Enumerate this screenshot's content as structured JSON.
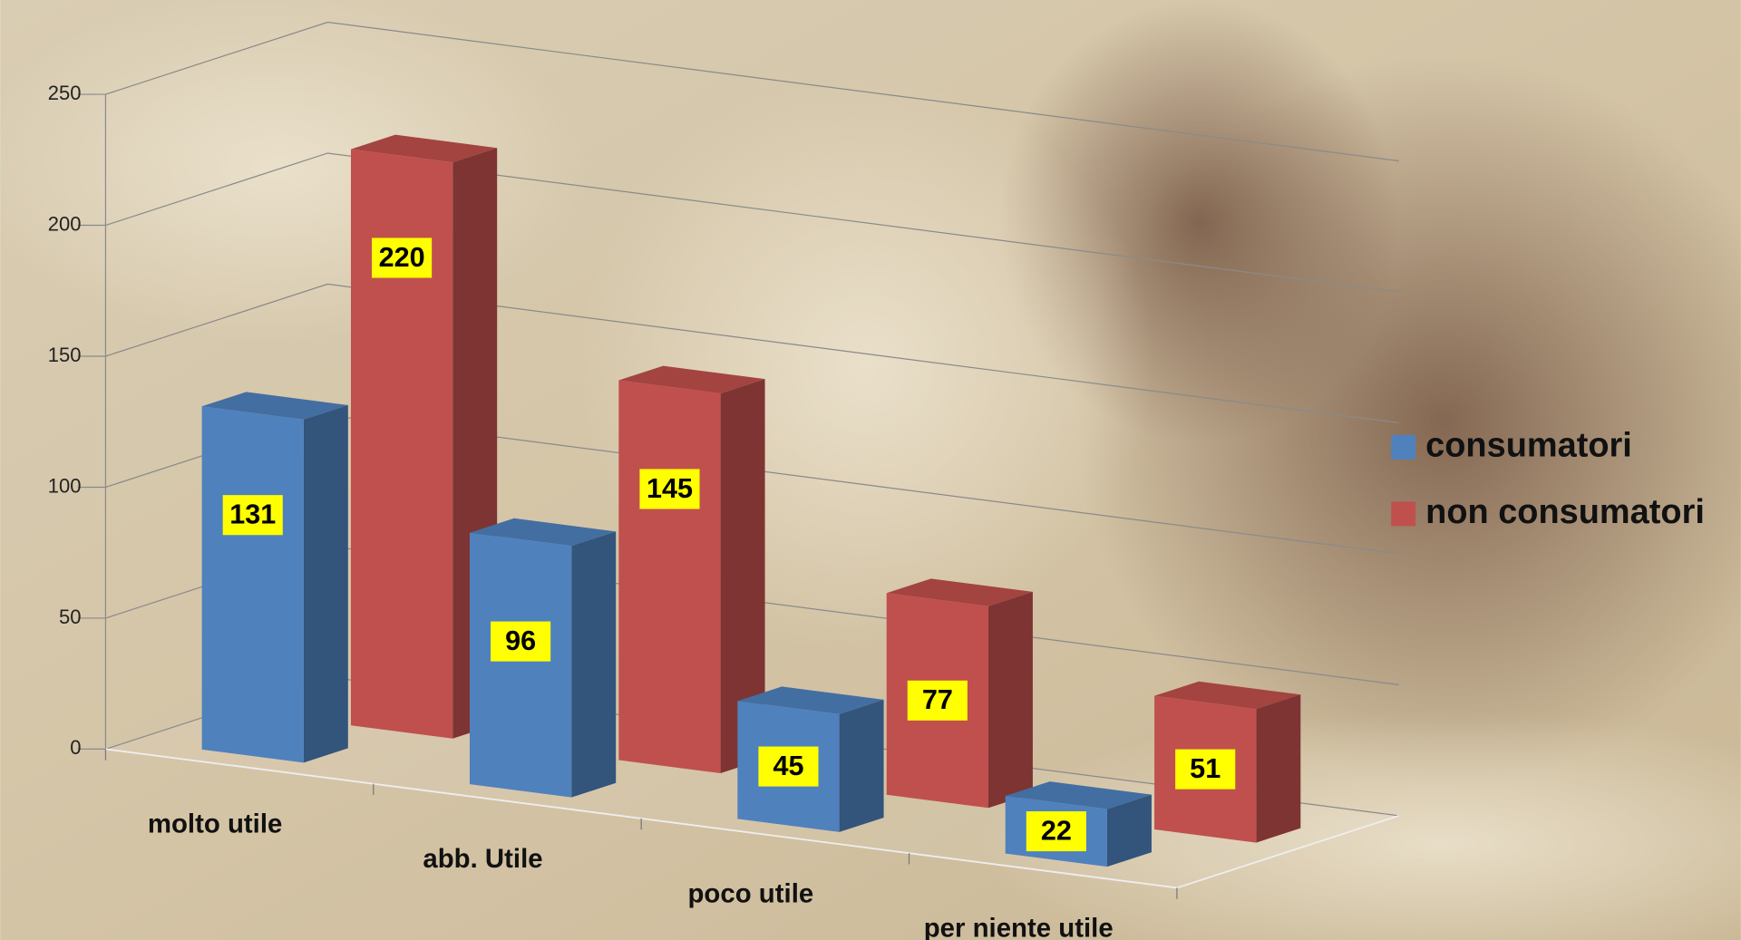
{
  "chart_data": {
    "type": "bar3d",
    "categories": [
      "molto utile",
      "abb. Utile",
      "poco utile",
      "per niente utile"
    ],
    "series": [
      {
        "name": "consumatori",
        "color": "#4f81bd",
        "values": [
          131,
          96,
          45,
          22
        ]
      },
      {
        "name": "non consumatori",
        "color": "#c0504d",
        "values": [
          220,
          145,
          77,
          51
        ]
      }
    ],
    "ylim": [
      0,
      250
    ],
    "yticks": [
      0,
      50,
      100,
      150,
      200,
      250
    ],
    "grid": true,
    "legend": "right"
  }
}
